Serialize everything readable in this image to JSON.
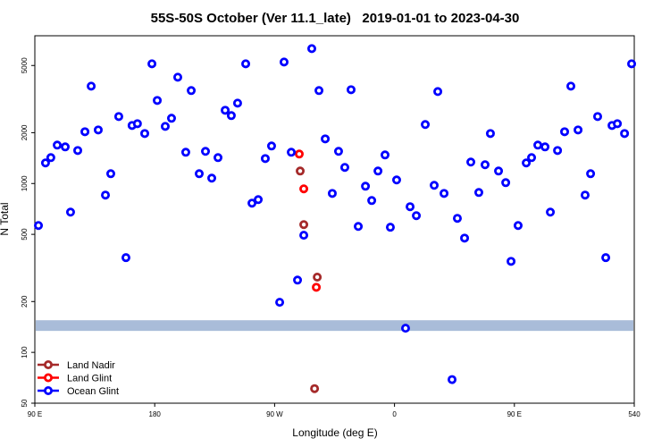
{
  "chart_data": {
    "type": "scatter",
    "title": "55S-50S October (Ver 11.1_late)   2019-01-01 to 2023-04-30",
    "x_label": "Longitude (deg E)",
    "y_label": "N Total",
    "xlim": [
      90,
      540
    ],
    "ylim": [
      50,
      7500
    ],
    "log_y": true,
    "xticks": [
      {
        "value": 90,
        "label": "90 E"
      },
      180,
      {
        "value": 270,
        "label": "90 W"
      },
      {
        "value": 360,
        "label": "0"
      },
      {
        "value": 450,
        "label": "90 E"
      },
      540
    ],
    "yticks": [
      50,
      100,
      200,
      500,
      1000,
      2000,
      5000
    ],
    "shaded_band": {
      "range": [
        134,
        155
      ],
      "color": "#a9bcd9"
    },
    "legend": "bottom-left",
    "series": [
      {
        "name": "Land Nadir",
        "color": "#a52a2a",
        "x": [
          289.2,
          291.9,
          302,
          300
        ],
        "values": [
          1186,
          571,
          279,
          61
        ]
      },
      {
        "name": "Land Glint",
        "color": "#ff0000",
        "x": [
          288.5,
          291.9,
          301.3
        ],
        "values": [
          1495,
          930,
          243
        ]
      },
      {
        "name": "Ocean Glint",
        "color": "#0000ff",
        "x": [
          92.7,
          98,
          102,
          106.8,
          112.8,
          116.8,
          122.2,
          127.6,
          132.3,
          137.6,
          143,
          147,
          153,
          158.4,
          163,
          167,
          172.5,
          177.9,
          181.9,
          187.9,
          192.6,
          197.3,
          203.3,
          207.4,
          213.4,
          218.1,
          222.8,
          227.5,
          232.9,
          237.5,
          242.2,
          248.3,
          253,
          257.7,
          263,
          267.7,
          273.8,
          277.1,
          282.5,
          287.2,
          291.9,
          297.9,
          303.3,
          308,
          313.3,
          318,
          322.7,
          327.4,
          332.8,
          338.2,
          342.9,
          347.6,
          352.9,
          356.9,
          361.6,
          368.3,
          371.7,
          376.4,
          383.1,
          389.8,
          392.5,
          397.2,
          403.2,
          407.2,
          412.6,
          417.3,
          423.3,
          428,
          432,
          438.1,
          443.5,
          447.5,
          452.8,
          458.9,
          462.9,
          467.6,
          473,
          477,
          482.4,
          487.7,
          492.4,
          497.8,
          503.1,
          507.2,
          512.5,
          518.6,
          523.3,
          527.3,
          532.7,
          538
        ],
        "values": [
          564,
          1324,
          1424,
          1689,
          1648,
          677,
          1569,
          2027,
          3773,
          2077,
          854,
          1143,
          2493,
          364,
          2207,
          2262,
          1978,
          5117,
          3105,
          2180,
          2434,
          4262,
          1532,
          3552,
          1143,
          1551,
          1076,
          1424,
          2716,
          2525,
          2993,
          5117,
          765,
          803,
          1406,
          1668,
          198,
          5244,
          1532,
          268,
          494,
          6294,
          3552,
          1838,
          874,
          1551,
          1246,
          3594,
          557,
          964,
          793,
          1186,
          1477,
          551,
          1050,
          139,
          729,
          645,
          2236,
          976,
          3505,
          874,
          69,
          622,
          475,
          1340,
          885,
          1292,
          1978,
          1186,
          1012,
          346,
          564,
          1324,
          1424,
          1689,
          1648,
          677,
          1569,
          2027,
          3773,
          2077,
          854,
          1143,
          2493,
          364,
          2207,
          2262,
          1978,
          5117
        ]
      }
    ]
  }
}
